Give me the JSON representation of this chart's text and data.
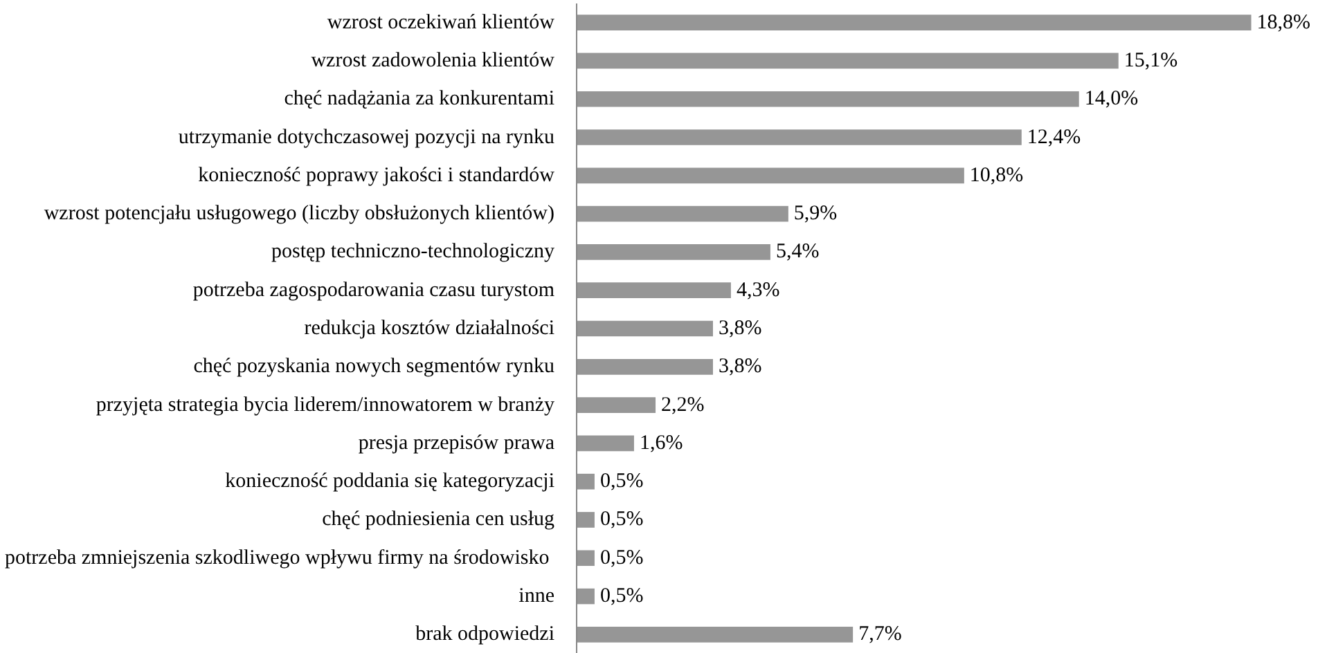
{
  "chart_data": {
    "type": "bar",
    "orientation": "horizontal",
    "categories": [
      "wzrost oczekiwań klientów",
      "wzrost zadowolenia klientów",
      "chęć nadążania za konkurentami",
      "utrzymanie dotychczasowej pozycji na rynku",
      "konieczność poprawy jakości i standardów",
      "wzrost potencjału usługowego (liczby obsłużonych klientów)",
      "postęp techniczno-technologiczny",
      "potrzeba zagospodarowania czasu turystom",
      "redukcja kosztów działalności",
      "chęć pozyskania nowych segmentów rynku",
      "przyjęta strategia bycia liderem/innowatorem w branży",
      "presja przepisów prawa",
      "konieczność poddania się kategoryzacji",
      "chęć podniesienia cen usług",
      "potrzeba zmniejszenia szkodliwego wpływu  firmy na środowisko",
      "inne",
      "brak odpowiedzi"
    ],
    "values": [
      18.8,
      15.1,
      14.0,
      12.4,
      10.8,
      5.9,
      5.4,
      4.3,
      3.8,
      3.8,
      2.2,
      1.6,
      0.5,
      0.5,
      0.5,
      0.5,
      7.7
    ],
    "value_labels": [
      "18,8%",
      "15,1%",
      "14,0%",
      "12,4%",
      "10,8%",
      "5,9%",
      "5,4%",
      "4,3%",
      "3,8%",
      "3,8%",
      "2,2%",
      "1,6%",
      "0,5%",
      "0,5%",
      "0,5%",
      "0,5%",
      "7,7%"
    ],
    "color": "#969696",
    "tick_labels": "y"
  }
}
